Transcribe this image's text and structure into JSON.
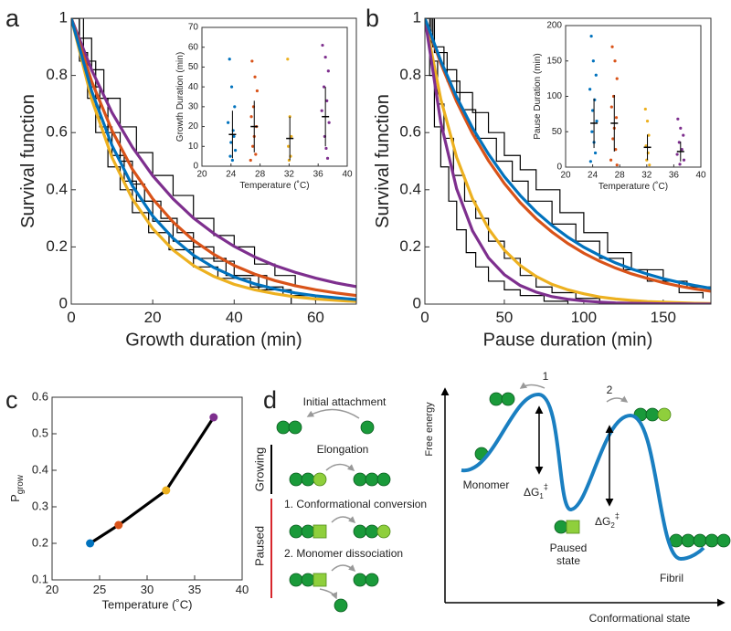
{
  "chart_data": [
    {
      "type": "line",
      "panel": "a",
      "xlabel": "Growth duration (min)",
      "ylabel": "Survival function",
      "xlim": [
        0,
        70
      ],
      "ylim": [
        0,
        1
      ],
      "xticks": [
        0,
        20,
        40,
        60
      ],
      "yticks": [
        0,
        0.2,
        0.4,
        0.6,
        0.8,
        1
      ],
      "series": [
        {
          "color": "#000000",
          "step": true,
          "x": [
            0,
            2,
            5,
            8,
            12,
            16,
            20,
            25,
            30,
            35,
            40,
            45,
            50,
            55
          ],
          "values": [
            1,
            0.93,
            0.82,
            0.72,
            0.62,
            0.53,
            0.45,
            0.38,
            0.3,
            0.24,
            0.2,
            0.14,
            0.1,
            0.06
          ]
        },
        {
          "color": "#000000",
          "step": true,
          "x": [
            0,
            3,
            6,
            9,
            12,
            15,
            18,
            22,
            26,
            30,
            35,
            40,
            48
          ],
          "values": [
            1,
            0.85,
            0.72,
            0.6,
            0.5,
            0.42,
            0.36,
            0.3,
            0.25,
            0.2,
            0.15,
            0.1,
            0.05
          ]
        },
        {
          "color": "#000000",
          "step": true,
          "x": [
            0,
            2,
            4,
            7,
            10,
            13,
            16,
            20,
            25,
            30,
            38,
            46,
            54
          ],
          "values": [
            1,
            0.88,
            0.76,
            0.62,
            0.52,
            0.43,
            0.36,
            0.29,
            0.22,
            0.16,
            0.1,
            0.05,
            0
          ]
        },
        {
          "color": "#000000",
          "step": true,
          "x": [
            0,
            2,
            4,
            6,
            9,
            12,
            15,
            19,
            24,
            30,
            36,
            44,
            52,
            60
          ],
          "values": [
            1,
            0.85,
            0.72,
            0.6,
            0.48,
            0.4,
            0.32,
            0.25,
            0.19,
            0.13,
            0.09,
            0.06,
            0.03,
            0.01
          ]
        },
        {
          "color": "#7e2f8e",
          "x": [
            0,
            5,
            10,
            15,
            20,
            25,
            30,
            35,
            40,
            45,
            50,
            55,
            60,
            65,
            70
          ],
          "values": [
            1,
            0.819,
            0.67,
            0.549,
            0.449,
            0.368,
            0.301,
            0.247,
            0.202,
            0.165,
            0.135,
            0.111,
            0.091,
            0.074,
            0.061
          ]
        },
        {
          "color": "#d95319",
          "x": [
            0,
            5,
            10,
            15,
            20,
            25,
            30,
            35,
            40,
            45,
            50,
            55,
            60,
            65,
            70
          ],
          "values": [
            1,
            0.779,
            0.607,
            0.472,
            0.368,
            0.287,
            0.223,
            0.174,
            0.135,
            0.105,
            0.082,
            0.064,
            0.05,
            0.039,
            0.03
          ]
        },
        {
          "color": "#edb120",
          "x": [
            0,
            5,
            10,
            15,
            20,
            25,
            30,
            35,
            40,
            45,
            50,
            55,
            60,
            65,
            70
          ],
          "values": [
            1,
            0.717,
            0.513,
            0.368,
            0.264,
            0.189,
            0.135,
            0.097,
            0.069,
            0.05,
            0.036,
            0.025,
            0.018,
            0.013,
            0.009
          ]
        },
        {
          "color": "#0072bd",
          "x": [
            0,
            5,
            10,
            15,
            20,
            25,
            30,
            35,
            40,
            45,
            50,
            55,
            60,
            65,
            70
          ],
          "values": [
            1,
            0.745,
            0.555,
            0.414,
            0.308,
            0.23,
            0.171,
            0.128,
            0.095,
            0.071,
            0.053,
            0.039,
            0.029,
            0.022,
            0.016
          ]
        }
      ]
    },
    {
      "type": "scatter",
      "xlabel": "Temperature (˚C)",
      "ylabel": "Growth Duration (min)",
      "xlim": [
        20,
        40
      ],
      "ylim": [
        0,
        70
      ],
      "xticks": [
        20,
        24,
        28,
        32,
        36,
        40
      ],
      "yticks": [
        0,
        10,
        20,
        30,
        40,
        50,
        60,
        70
      ],
      "series": [
        {
          "color": "#0072bd",
          "x": [
            23.8,
            24.1,
            24.5,
            23.6,
            24.3,
            24.0,
            24.6,
            23.9,
            24.2,
            24.4
          ],
          "values": [
            54,
            40,
            30,
            22,
            18,
            12,
            8,
            5,
            3,
            15
          ]
        },
        {
          "color": "#d95319",
          "x": [
            26.9,
            27.3,
            27.6,
            27.1,
            26.8,
            27.5,
            27.2,
            27.0,
            27.4,
            26.7
          ],
          "values": [
            53,
            45,
            38,
            30,
            25,
            20,
            15,
            10,
            6,
            3
          ]
        },
        {
          "color": "#edb120",
          "x": [
            31.8,
            32.1,
            32.3,
            31.9,
            32.2,
            32.0
          ],
          "values": [
            54,
            25,
            15,
            10,
            5,
            3
          ]
        },
        {
          "color": "#7e2f8e",
          "x": [
            36.6,
            37.0,
            37.4,
            36.8,
            37.2,
            36.5,
            37.5,
            36.9,
            37.1,
            37.3
          ],
          "values": [
            61,
            55,
            48,
            40,
            33,
            28,
            22,
            15,
            9,
            4
          ]
        }
      ],
      "errorbars": [
        {
          "x": 24.2,
          "value": 16,
          "error": 12
        },
        {
          "x": 27.2,
          "value": 20,
          "error": 13
        },
        {
          "x": 32.1,
          "value": 14,
          "error": 11
        },
        {
          "x": 37.0,
          "value": 25,
          "error": 15
        }
      ]
    },
    {
      "type": "line",
      "panel": "b",
      "xlabel": "Pause duration (min)",
      "ylabel": "Survival function",
      "xlim": [
        0,
        180
      ],
      "ylim": [
        0,
        1
      ],
      "xticks": [
        0,
        50,
        100,
        150
      ],
      "yticks": [
        0,
        0.2,
        0.4,
        0.6,
        0.8,
        1
      ],
      "series": [
        {
          "color": "#000000",
          "step": true,
          "x": [
            0,
            5,
            12,
            20,
            30,
            40,
            50,
            60,
            70,
            85,
            100,
            115,
            130,
            150,
            165,
            180
          ],
          "values": [
            1,
            0.9,
            0.82,
            0.74,
            0.67,
            0.6,
            0.52,
            0.47,
            0.4,
            0.32,
            0.25,
            0.18,
            0.12,
            0.08,
            0.06,
            0.05
          ]
        },
        {
          "color": "#000000",
          "step": true,
          "x": [
            0,
            6,
            14,
            22,
            32,
            45,
            55,
            65,
            80,
            95,
            110,
            125,
            140,
            160,
            175
          ],
          "values": [
            1,
            0.88,
            0.78,
            0.68,
            0.58,
            0.5,
            0.43,
            0.36,
            0.28,
            0.22,
            0.16,
            0.12,
            0.08,
            0.04,
            0.02
          ]
        },
        {
          "color": "#000000",
          "step": true,
          "x": [
            0,
            4,
            8,
            12,
            18,
            25,
            32,
            40,
            50,
            60,
            70,
            80,
            95,
            110
          ],
          "values": [
            1,
            0.85,
            0.7,
            0.58,
            0.45,
            0.36,
            0.3,
            0.22,
            0.16,
            0.1,
            0.06,
            0.04,
            0.02,
            0
          ]
        },
        {
          "color": "#000000",
          "step": true,
          "x": [
            0,
            3,
            6,
            10,
            15,
            20,
            26,
            32,
            40,
            50,
            60,
            75,
            90
          ],
          "values": [
            1,
            0.8,
            0.62,
            0.48,
            0.36,
            0.26,
            0.18,
            0.13,
            0.08,
            0.05,
            0.03,
            0.01,
            0
          ]
        },
        {
          "color": "#edb120",
          "x": [
            0,
            10,
            20,
            30,
            40,
            50,
            60,
            70,
            80,
            90,
            100,
            110,
            120,
            130,
            140,
            150,
            160,
            170,
            180
          ],
          "values": [
            1,
            0.717,
            0.513,
            0.368,
            0.264,
            0.189,
            0.135,
            0.097,
            0.069,
            0.05,
            0.036,
            0.025,
            0.018,
            0.013,
            0.009,
            0.007,
            0.005,
            0.003,
            0.002
          ]
        },
        {
          "color": "#7e2f8e",
          "x": [
            0,
            10,
            20,
            30,
            40,
            50,
            60,
            70,
            80,
            90,
            100,
            110,
            120,
            130,
            140,
            150,
            160,
            170,
            180
          ],
          "values": [
            1,
            0.635,
            0.403,
            0.256,
            0.162,
            0.103,
            0.065,
            0.042,
            0.026,
            0.017,
            0.011,
            0.007,
            0.004,
            0.003,
            0.002,
            0.001,
            0.001,
            0,
            0
          ]
        },
        {
          "color": "#d95319",
          "x": [
            0,
            10,
            20,
            30,
            40,
            50,
            60,
            70,
            80,
            90,
            100,
            110,
            120,
            130,
            140,
            150,
            160,
            170,
            180
          ],
          "values": [
            1,
            0.842,
            0.708,
            0.596,
            0.502,
            0.422,
            0.355,
            0.299,
            0.252,
            0.212,
            0.178,
            0.15,
            0.126,
            0.106,
            0.09,
            0.075,
            0.063,
            0.053,
            0.045
          ]
        },
        {
          "color": "#0072bd",
          "x": [
            0,
            10,
            20,
            30,
            40,
            50,
            60,
            70,
            80,
            90,
            100,
            110,
            120,
            130,
            140,
            150,
            160,
            170,
            180
          ],
          "values": [
            1,
            0.851,
            0.724,
            0.616,
            0.525,
            0.446,
            0.38,
            0.323,
            0.275,
            0.234,
            0.199,
            0.17,
            0.144,
            0.123,
            0.105,
            0.089,
            0.076,
            0.065,
            0.055
          ]
        }
      ]
    },
    {
      "type": "scatter",
      "xlabel": "Temperature (˚C)",
      "ylabel": "Pause Duration (min)",
      "xlim": [
        20,
        40
      ],
      "ylim": [
        0,
        200
      ],
      "xticks": [
        20,
        24,
        28,
        32,
        36,
        40
      ],
      "yticks": [
        0,
        50,
        100,
        150,
        200
      ],
      "series": [
        {
          "color": "#0072bd",
          "x": [
            23.8,
            24.1,
            24.5,
            23.6,
            24.3,
            24.0,
            24.6,
            23.9,
            24.2,
            24.4,
            23.7
          ],
          "values": [
            185,
            150,
            130,
            110,
            95,
            80,
            65,
            50,
            35,
            20,
            8
          ]
        },
        {
          "color": "#d95319",
          "x": [
            26.9,
            27.3,
            27.6,
            27.1,
            26.8,
            27.5,
            27.2,
            27.0,
            27.4,
            26.7,
            27.6
          ],
          "values": [
            170,
            150,
            125,
            100,
            85,
            70,
            55,
            40,
            25,
            10,
            3
          ]
        },
        {
          "color": "#edb120",
          "x": [
            31.8,
            32.1,
            32.3,
            31.9,
            32.2,
            32.0,
            32.4
          ],
          "values": [
            82,
            65,
            45,
            30,
            20,
            10,
            3
          ]
        },
        {
          "color": "#7e2f8e",
          "x": [
            36.6,
            37.0,
            37.4,
            36.8,
            37.2,
            36.5,
            37.5,
            36.9
          ],
          "values": [
            68,
            55,
            45,
            35,
            25,
            18,
            10,
            4
          ]
        }
      ],
      "errorbars": [
        {
          "x": 24.2,
          "value": 62,
          "error": 35
        },
        {
          "x": 27.2,
          "value": 62,
          "error": 40
        },
        {
          "x": 32.1,
          "value": 28,
          "error": 18
        },
        {
          "x": 37.0,
          "value": 22,
          "error": 14
        }
      ]
    },
    {
      "type": "line",
      "panel": "c",
      "xlabel": "Temperature (˚C)",
      "ylabel": "P",
      "ylabel_sub": "grow",
      "xlim": [
        20,
        40
      ],
      "ylim": [
        0.1,
        0.6
      ],
      "xticks": [
        20,
        25,
        30,
        35,
        40
      ],
      "yticks": [
        0.1,
        0.2,
        0.3,
        0.4,
        0.5,
        0.6
      ],
      "series": [
        {
          "color": "#000000",
          "x": [
            24,
            27,
            32,
            37
          ],
          "values": [
            0.2,
            0.25,
            0.345,
            0.545
          ],
          "point_colors": [
            "#0072bd",
            "#d95319",
            "#edb120",
            "#7e2f8e"
          ]
        }
      ]
    }
  ],
  "diagram": {
    "panel": "d",
    "initial": "Initial attachment",
    "elongation": "Elongation",
    "growing": "Growing",
    "paused": "Paused",
    "step1": "1. Conformational conversion",
    "step2": "2. Monomer dissociation",
    "yaxis": "Free energy",
    "xaxis": "Conformational state",
    "monomer": "Monomer",
    "paused_state": [
      "Paused",
      "state"
    ],
    "fibril": "Fibril",
    "barrier1": "1",
    "barrier2": "2",
    "dg1": {
      "main": "ΔG",
      "sub": "1",
      "sup": "‡"
    },
    "dg2": {
      "main": "ΔG",
      "sub": "2",
      "sup": "‡"
    }
  }
}
